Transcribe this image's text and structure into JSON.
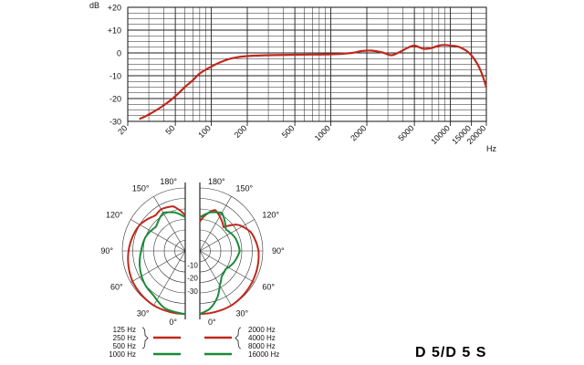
{
  "chart_data": [
    {
      "type": "line",
      "title": "",
      "xlabel": "Hz",
      "ylabel": "dB",
      "x_scale": "log",
      "xlim": [
        20,
        20000
      ],
      "ylim": [
        -30,
        20
      ],
      "x_ticks": [
        "20",
        "50",
        "100",
        "200",
        "500",
        "1000",
        "2000",
        "5000",
        "10000",
        "15000",
        "20000"
      ],
      "y_ticks": [
        "+20",
        "+10",
        "0",
        "-10",
        "-20",
        "-30"
      ],
      "grid": true,
      "series": [
        {
          "color": "#c0281c",
          "points": [
            [
              25,
              -29
            ],
            [
              30,
              -27
            ],
            [
              40,
              -23
            ],
            [
              50,
              -19
            ],
            [
              60,
              -15
            ],
            [
              70,
              -12
            ],
            [
              80,
              -9
            ],
            [
              100,
              -6
            ],
            [
              120,
              -4
            ],
            [
              150,
              -2.3
            ],
            [
              200,
              -1.4
            ],
            [
              300,
              -1.0
            ],
            [
              500,
              -0.8
            ],
            [
              1000,
              -0.6
            ],
            [
              1500,
              0
            ],
            [
              1800,
              0.8
            ],
            [
              2200,
              1.0
            ],
            [
              2700,
              0.2
            ],
            [
              3200,
              -1.0
            ],
            [
              3700,
              0.2
            ],
            [
              4500,
              2.5
            ],
            [
              5000,
              3.2
            ],
            [
              5500,
              2.5
            ],
            [
              6000,
              1.8
            ],
            [
              7000,
              2.2
            ],
            [
              8000,
              3.2
            ],
            [
              9000,
              3.5
            ],
            [
              10000,
              3.2
            ],
            [
              11000,
              3.0
            ],
            [
              12000,
              2.5
            ],
            [
              14000,
              0.5
            ],
            [
              16000,
              -3
            ],
            [
              18000,
              -8
            ],
            [
              20000,
              -15
            ]
          ]
        }
      ]
    },
    {
      "type": "polar",
      "title": "",
      "angle_labels": [
        "180°",
        "150°",
        "120°",
        "90°",
        "60°",
        "30°",
        "0°"
      ],
      "radial_labels": [
        "-10",
        "-20",
        "-30"
      ],
      "legend_left": {
        "labels": [
          "125 Hz",
          "250 Hz",
          "500 Hz",
          "1000 Hz"
        ],
        "colors": [
          "#c0281c",
          "#c0281c",
          "#c0281c",
          "#1a8a3a"
        ]
      },
      "legend_right": {
        "labels": [
          "2000 Hz",
          "4000 Hz",
          "8000 Hz",
          "16000 Hz"
        ],
        "colors": [
          "#c0281c",
          "#c0281c",
          "#c0281c",
          "#1a8a3a"
        ]
      },
      "series": [
        {
          "side": "left",
          "color": "#c0281c",
          "db_by_angle": [
            [
              0,
              0
            ],
            [
              30,
              0
            ],
            [
              60,
              -1
            ],
            [
              90,
              -3
            ],
            [
              120,
              -5
            ],
            [
              140,
              -8
            ],
            [
              150,
              -7
            ],
            [
              165,
              -8
            ],
            [
              180,
              -13
            ]
          ]
        },
        {
          "side": "left",
          "color": "#1a8a3a",
          "db_by_angle": [
            [
              0,
              0
            ],
            [
              20,
              -1
            ],
            [
              35,
              -4
            ],
            [
              50,
              -5
            ],
            [
              70,
              -7
            ],
            [
              90,
              -9
            ],
            [
              110,
              -10
            ],
            [
              130,
              -12
            ],
            [
              150,
              -9
            ],
            [
              165,
              -11
            ],
            [
              180,
              -14
            ]
          ]
        },
        {
          "side": "right",
          "color": "#c0281c",
          "db_by_angle": [
            [
              0,
              0
            ],
            [
              30,
              0
            ],
            [
              60,
              -1
            ],
            [
              90,
              -2
            ],
            [
              110,
              -4
            ],
            [
              125,
              -8
            ],
            [
              135,
              -14
            ],
            [
              145,
              -12
            ],
            [
              160,
              -9
            ],
            [
              172,
              -13
            ],
            [
              180,
              -16
            ]
          ]
        },
        {
          "side": "right",
          "color": "#1a8a3a",
          "db_by_angle": [
            [
              0,
              0
            ],
            [
              10,
              -2
            ],
            [
              20,
              -6
            ],
            [
              30,
              -11
            ],
            [
              40,
              -14
            ],
            [
              55,
              -15
            ],
            [
              70,
              -13
            ],
            [
              90,
              -11
            ],
            [
              110,
              -12
            ],
            [
              130,
              -14
            ],
            [
              150,
              -9
            ],
            [
              165,
              -11
            ],
            [
              180,
              -14
            ]
          ]
        }
      ]
    }
  ],
  "model_label": "D 5/D 5 S"
}
